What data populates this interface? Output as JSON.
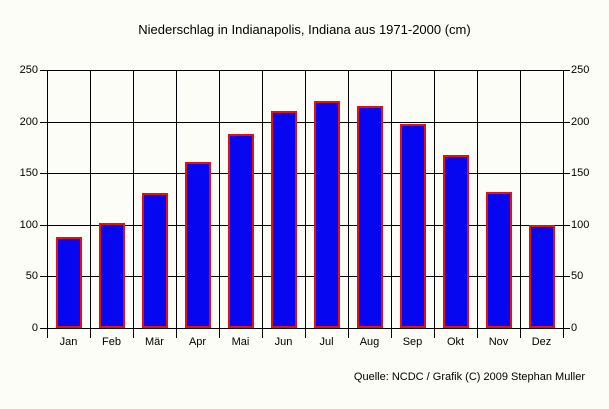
{
  "page": {
    "background_color": "#fcfdf6",
    "text_color": "#000000"
  },
  "source": "Quelle: NCDC / Grafik (C) 2009 Stephan Muller",
  "chart_data": {
    "type": "bar",
    "title": "Niederschlag in Indianapolis, Indiana aus 1971-2000 (cm)",
    "categories": [
      "Jan",
      "Feb",
      "Mär",
      "Apr",
      "Mai",
      "Jun",
      "Jul",
      "Aug",
      "Sep",
      "Okt",
      "Nov",
      "Dez"
    ],
    "values": [
      88,
      102,
      131,
      161,
      188,
      210,
      220,
      215,
      198,
      168,
      132,
      100
    ],
    "xlabel": "",
    "ylabel": "",
    "ylim": [
      0,
      250
    ],
    "yticks": [
      0,
      50,
      100,
      150,
      200,
      250
    ],
    "grid": true,
    "dual_y_axis": true,
    "legend": "none",
    "bar_fill_color": "#0606f0",
    "bar_border_color": "#e41010",
    "grid_color": "#000000",
    "annotation": "Quelle: NCDC / Grafik (C) 2009 Stephan Muller"
  }
}
